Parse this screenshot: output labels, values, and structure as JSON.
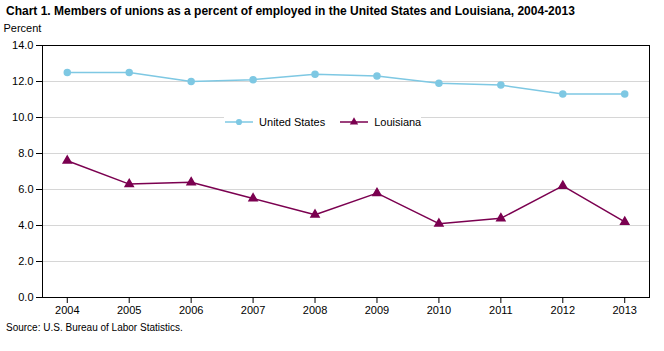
{
  "chart_data": {
    "type": "line",
    "title": "Chart 1.  Members of unions as a percent of employed in the United States and Louisiana, 2004-2013",
    "ylabel": "Percent",
    "annotations": [
      "Source: U.S. Bureau of Labor Statistics."
    ],
    "x": [
      2004,
      2005,
      2006,
      2007,
      2008,
      2009,
      2010,
      2011,
      2012,
      2013
    ],
    "series": [
      {
        "name": "United States",
        "color": "#7ec8e3",
        "marker": "circle",
        "values": [
          12.5,
          12.5,
          12.0,
          12.1,
          12.4,
          12.3,
          11.9,
          11.8,
          11.3,
          11.3
        ]
      },
      {
        "name": "Louisiana",
        "color": "#7b0050",
        "marker": "triangle",
        "values": [
          7.6,
          6.3,
          6.4,
          5.5,
          4.6,
          5.8,
          4.1,
          4.4,
          6.2,
          4.2
        ]
      }
    ],
    "xlim": [
      2003.6,
      2013.4
    ],
    "xticks": [
      2004,
      2005,
      2006,
      2007,
      2008,
      2009,
      2010,
      2011,
      2012,
      2013
    ],
    "ylim": [
      0,
      14.0
    ],
    "yticks": [
      {
        "value": 0,
        "label": "0.0"
      },
      {
        "value": 2,
        "label": "2.0"
      },
      {
        "value": 4,
        "label": "4.0"
      },
      {
        "value": 6,
        "label": "6.0"
      },
      {
        "value": 8,
        "label": "8.0"
      },
      {
        "value": 10,
        "label": "10.0"
      },
      {
        "value": 12,
        "label": "12.0"
      },
      {
        "value": 14,
        "label": "14.0"
      }
    ],
    "grid": true,
    "legend": "center"
  }
}
